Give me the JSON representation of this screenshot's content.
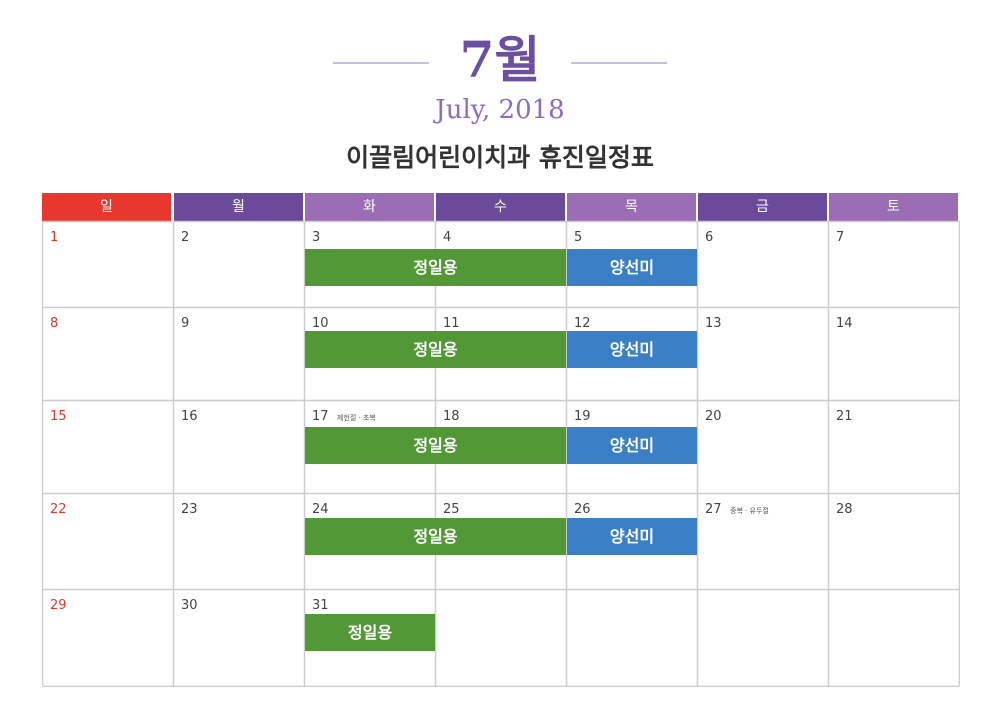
{
  "header": {
    "month": "7월",
    "subtitle": "July, 2018",
    "title": "이끌림어린이치과 휴진일정표"
  },
  "weekdays": [
    {
      "label": "일",
      "color": "#e8372f"
    },
    {
      "label": "월",
      "color": "#6b4a9b"
    },
    {
      "label": "화",
      "color": "#9b6db5"
    },
    {
      "label": "수",
      "color": "#6b4a9b"
    },
    {
      "label": "목",
      "color": "#9b6db5"
    },
    {
      "label": "금",
      "color": "#6b4a9b"
    },
    {
      "label": "토",
      "color": "#9b6db5"
    }
  ],
  "weeks": [
    [
      "1",
      "2",
      "3",
      "4",
      "5",
      "6",
      "7"
    ],
    [
      "8",
      "9",
      "10",
      "11",
      "12",
      "13",
      "14"
    ],
    [
      "15",
      "16",
      "17",
      "18",
      "19",
      "20",
      "21"
    ],
    [
      "22",
      "23",
      "24",
      "25",
      "26",
      "27",
      "28"
    ],
    [
      "29",
      "30",
      "31",
      "",
      "",
      "",
      ""
    ]
  ],
  "holidays": [
    {
      "week": 2,
      "day": 2,
      "label": "제헌절 · 초복"
    },
    {
      "week": 3,
      "day": 5,
      "label": "중복 · 유두절"
    }
  ],
  "schedule": [
    {
      "week": 0,
      "start": 2,
      "span": 2,
      "name": "정일용",
      "color": "green"
    },
    {
      "week": 0,
      "start": 4,
      "span": 1,
      "name": "양선미",
      "color": "blue"
    },
    {
      "week": 1,
      "start": 2,
      "span": 2,
      "name": "정일용",
      "color": "green"
    },
    {
      "week": 1,
      "start": 4,
      "span": 1,
      "name": "양선미",
      "color": "blue"
    },
    {
      "week": 2,
      "start": 2,
      "span": 2,
      "name": "정일용",
      "color": "green"
    },
    {
      "week": 2,
      "start": 4,
      "span": 1,
      "name": "양선미",
      "color": "blue"
    },
    {
      "week": 3,
      "start": 2,
      "span": 2,
      "name": "정일용",
      "color": "green"
    },
    {
      "week": 3,
      "start": 4,
      "span": 1,
      "name": "양선미",
      "color": "blue"
    },
    {
      "week": 4,
      "start": 2,
      "span": 1,
      "name": "정일용",
      "color": "green"
    }
  ]
}
